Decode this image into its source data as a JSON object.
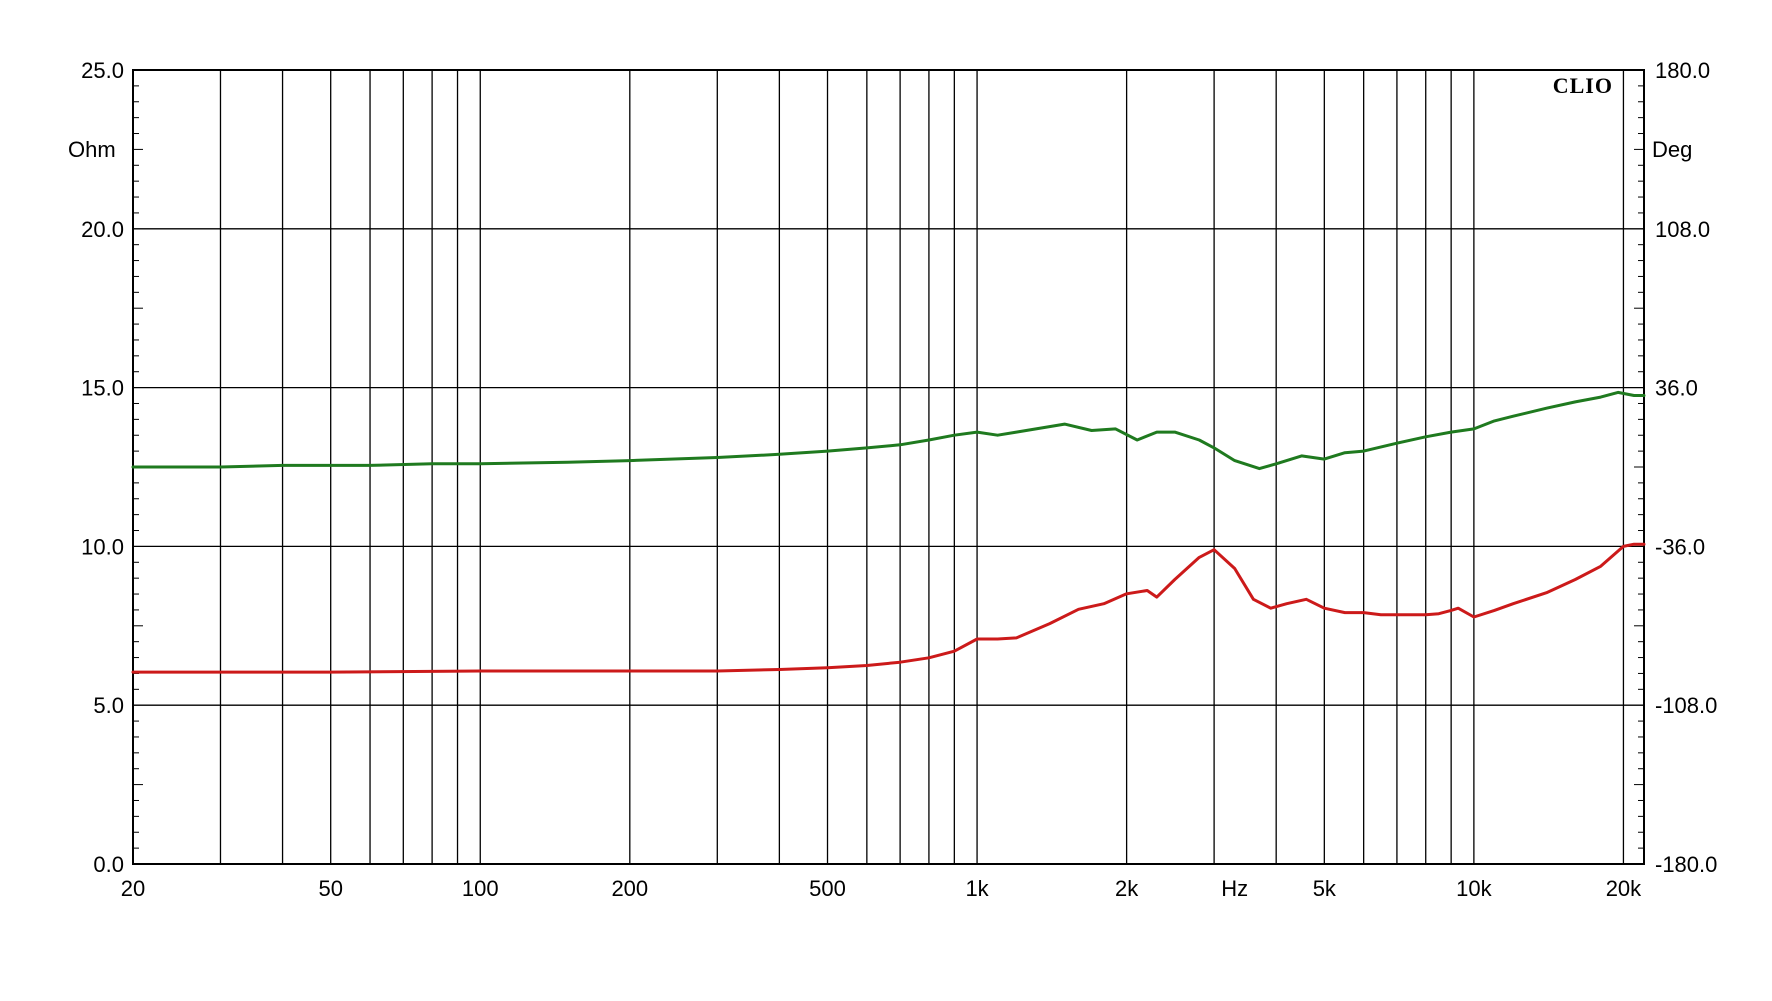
{
  "chart_data": {
    "type": "line",
    "title": "",
    "brand": "CLIO",
    "x_scale": "log",
    "xlim": [
      20,
      22000
    ],
    "x_unit_label": "Hz",
    "x_tick_labels": [
      {
        "value": 20,
        "label": "20"
      },
      {
        "value": 50,
        "label": "50"
      },
      {
        "value": 100,
        "label": "100"
      },
      {
        "value": 200,
        "label": "200"
      },
      {
        "value": 500,
        "label": "500"
      },
      {
        "value": 1000,
        "label": "1k"
      },
      {
        "value": 2000,
        "label": "2k"
      },
      {
        "value": 5000,
        "label": "5k"
      },
      {
        "value": 10000,
        "label": "10k"
      },
      {
        "value": 20000,
        "label": "20k"
      }
    ],
    "left_axis": {
      "label": "Ohm",
      "ylim": [
        0,
        25
      ],
      "ticks": [
        {
          "value": 0,
          "label": "0.0"
        },
        {
          "value": 5,
          "label": "5.0"
        },
        {
          "value": 10,
          "label": "10.0"
        },
        {
          "value": 15,
          "label": "15.0"
        },
        {
          "value": 20,
          "label": "20.0"
        },
        {
          "value": 25,
          "label": "25.0"
        }
      ]
    },
    "right_axis": {
      "label": "Deg",
      "ylim": [
        -180,
        180
      ],
      "ticks": [
        {
          "value": -180,
          "label": "-180.0"
        },
        {
          "value": -108,
          "label": "-108.0"
        },
        {
          "value": -36,
          "label": "-36.0"
        },
        {
          "value": 36,
          "label": "36.0"
        },
        {
          "value": 108,
          "label": "108.0"
        },
        {
          "value": 180,
          "label": "180.0"
        }
      ]
    },
    "grid": true,
    "series": [
      {
        "color": "#1f7a1f",
        "axis": "left",
        "points": [
          [
            20,
            12.5
          ],
          [
            30,
            12.5
          ],
          [
            40,
            12.55
          ],
          [
            60,
            12.55
          ],
          [
            80,
            12.6
          ],
          [
            100,
            12.6
          ],
          [
            150,
            12.65
          ],
          [
            200,
            12.7
          ],
          [
            300,
            12.8
          ],
          [
            400,
            12.9
          ],
          [
            500,
            13.0
          ],
          [
            600,
            13.1
          ],
          [
            700,
            13.2
          ],
          [
            800,
            13.35
          ],
          [
            900,
            13.5
          ],
          [
            1000,
            13.6
          ],
          [
            1100,
            13.5
          ],
          [
            1200,
            13.6
          ],
          [
            1500,
            13.85
          ],
          [
            1700,
            13.65
          ],
          [
            1900,
            13.7
          ],
          [
            2100,
            13.35
          ],
          [
            2300,
            13.6
          ],
          [
            2500,
            13.6
          ],
          [
            2800,
            13.35
          ],
          [
            3000,
            13.1
          ],
          [
            3300,
            12.7
          ],
          [
            3700,
            12.45
          ],
          [
            4000,
            12.6
          ],
          [
            4500,
            12.85
          ],
          [
            5000,
            12.75
          ],
          [
            5500,
            12.95
          ],
          [
            6000,
            13.0
          ],
          [
            7000,
            13.25
          ],
          [
            8000,
            13.45
          ],
          [
            9000,
            13.6
          ],
          [
            10000,
            13.7
          ],
          [
            11000,
            13.95
          ],
          [
            12000,
            14.1
          ],
          [
            14000,
            14.35
          ],
          [
            16000,
            14.55
          ],
          [
            18000,
            14.7
          ],
          [
            19500,
            14.85
          ],
          [
            21000,
            14.75
          ],
          [
            22000,
            14.75
          ]
        ]
      },
      {
        "color": "#cc1a1a",
        "axis": "right",
        "points": [
          [
            20,
            -93
          ],
          [
            50,
            -93
          ],
          [
            100,
            -92.5
          ],
          [
            200,
            -92.5
          ],
          [
            300,
            -92.5
          ],
          [
            400,
            -91.8
          ],
          [
            500,
            -91
          ],
          [
            600,
            -90
          ],
          [
            700,
            -88.5
          ],
          [
            800,
            -86.5
          ],
          [
            900,
            -83.5
          ],
          [
            1000,
            -78
          ],
          [
            1100,
            -78
          ],
          [
            1200,
            -77.5
          ],
          [
            1400,
            -71
          ],
          [
            1600,
            -64.5
          ],
          [
            1800,
            -62
          ],
          [
            2000,
            -57.5
          ],
          [
            2200,
            -56
          ],
          [
            2300,
            -59
          ],
          [
            2500,
            -51
          ],
          [
            2800,
            -41
          ],
          [
            3000,
            -37.5
          ],
          [
            3300,
            -46
          ],
          [
            3600,
            -60
          ],
          [
            3900,
            -64
          ],
          [
            4200,
            -62
          ],
          [
            4600,
            -60
          ],
          [
            5000,
            -64
          ],
          [
            5500,
            -66
          ],
          [
            6000,
            -66
          ],
          [
            6500,
            -67
          ],
          [
            7000,
            -67
          ],
          [
            8000,
            -67
          ],
          [
            8500,
            -66.5
          ],
          [
            9000,
            -65
          ],
          [
            9300,
            -64
          ],
          [
            10000,
            -68
          ],
          [
            11000,
            -65
          ],
          [
            12000,
            -62
          ],
          [
            14000,
            -57
          ],
          [
            16000,
            -51
          ],
          [
            18000,
            -45
          ],
          [
            20000,
            -36
          ],
          [
            21000,
            -35
          ],
          [
            22000,
            -35
          ]
        ]
      }
    ]
  }
}
